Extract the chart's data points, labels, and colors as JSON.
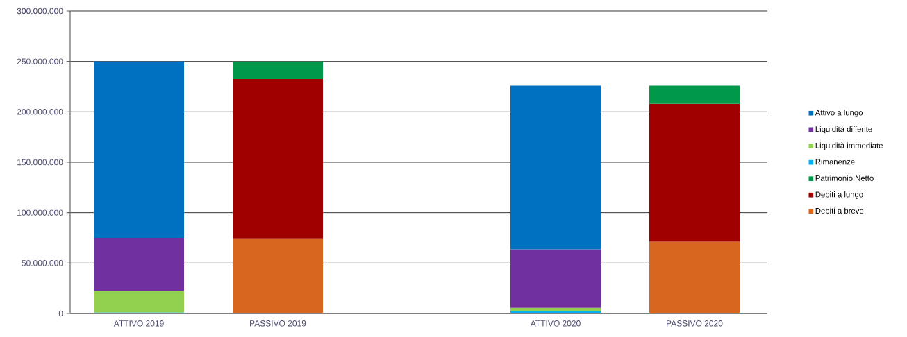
{
  "chart_data": {
    "type": "bar",
    "stacked": true,
    "categories": [
      "ATTIVO 2019",
      "PASSIVO 2019",
      null,
      "ATTIVO 2020",
      "PASSIVO 2020"
    ],
    "series": [
      {
        "name": "Debiti a breve",
        "color": "#d9661e",
        "values": [
          null,
          74500000,
          null,
          null,
          71200000
        ]
      },
      {
        "name": "Debiti a lungo",
        "color": "#a00000",
        "values": [
          null,
          158000000,
          null,
          null,
          136800000
        ]
      },
      {
        "name": "Patrimonio Netto",
        "color": "#00994a",
        "values": [
          null,
          17500000,
          null,
          null,
          18000000
        ]
      },
      {
        "name": "Rimanenze",
        "color": "#00b0f0",
        "values": [
          1000000,
          null,
          null,
          2300000,
          null
        ]
      },
      {
        "name": "Liquidità immediate",
        "color": "#92d050",
        "values": [
          21500000,
          null,
          null,
          3400000,
          null
        ]
      },
      {
        "name": "Liquidità differite",
        "color": "#7030a0",
        "values": [
          52500000,
          null,
          null,
          58000000,
          null
        ]
      },
      {
        "name": "Attivo a lungo",
        "color": "#0070c0",
        "values": [
          175000000,
          null,
          null,
          162300000,
          null
        ]
      }
    ],
    "ylim": [
      0,
      300000000
    ],
    "yticks": [
      0,
      {
        "value": 50000000,
        "label": "50.000.000"
      },
      {
        "value": 100000000,
        "label": "100.000.000"
      },
      {
        "value": 150000000,
        "label": "150.000.000"
      },
      {
        "value": 200000000,
        "label": "200.000.000"
      },
      {
        "value": 250000000,
        "label": "250.000.000"
      },
      {
        "value": 300000000,
        "label": "300.000.000"
      }
    ],
    "grid": "y",
    "legend": "right"
  }
}
